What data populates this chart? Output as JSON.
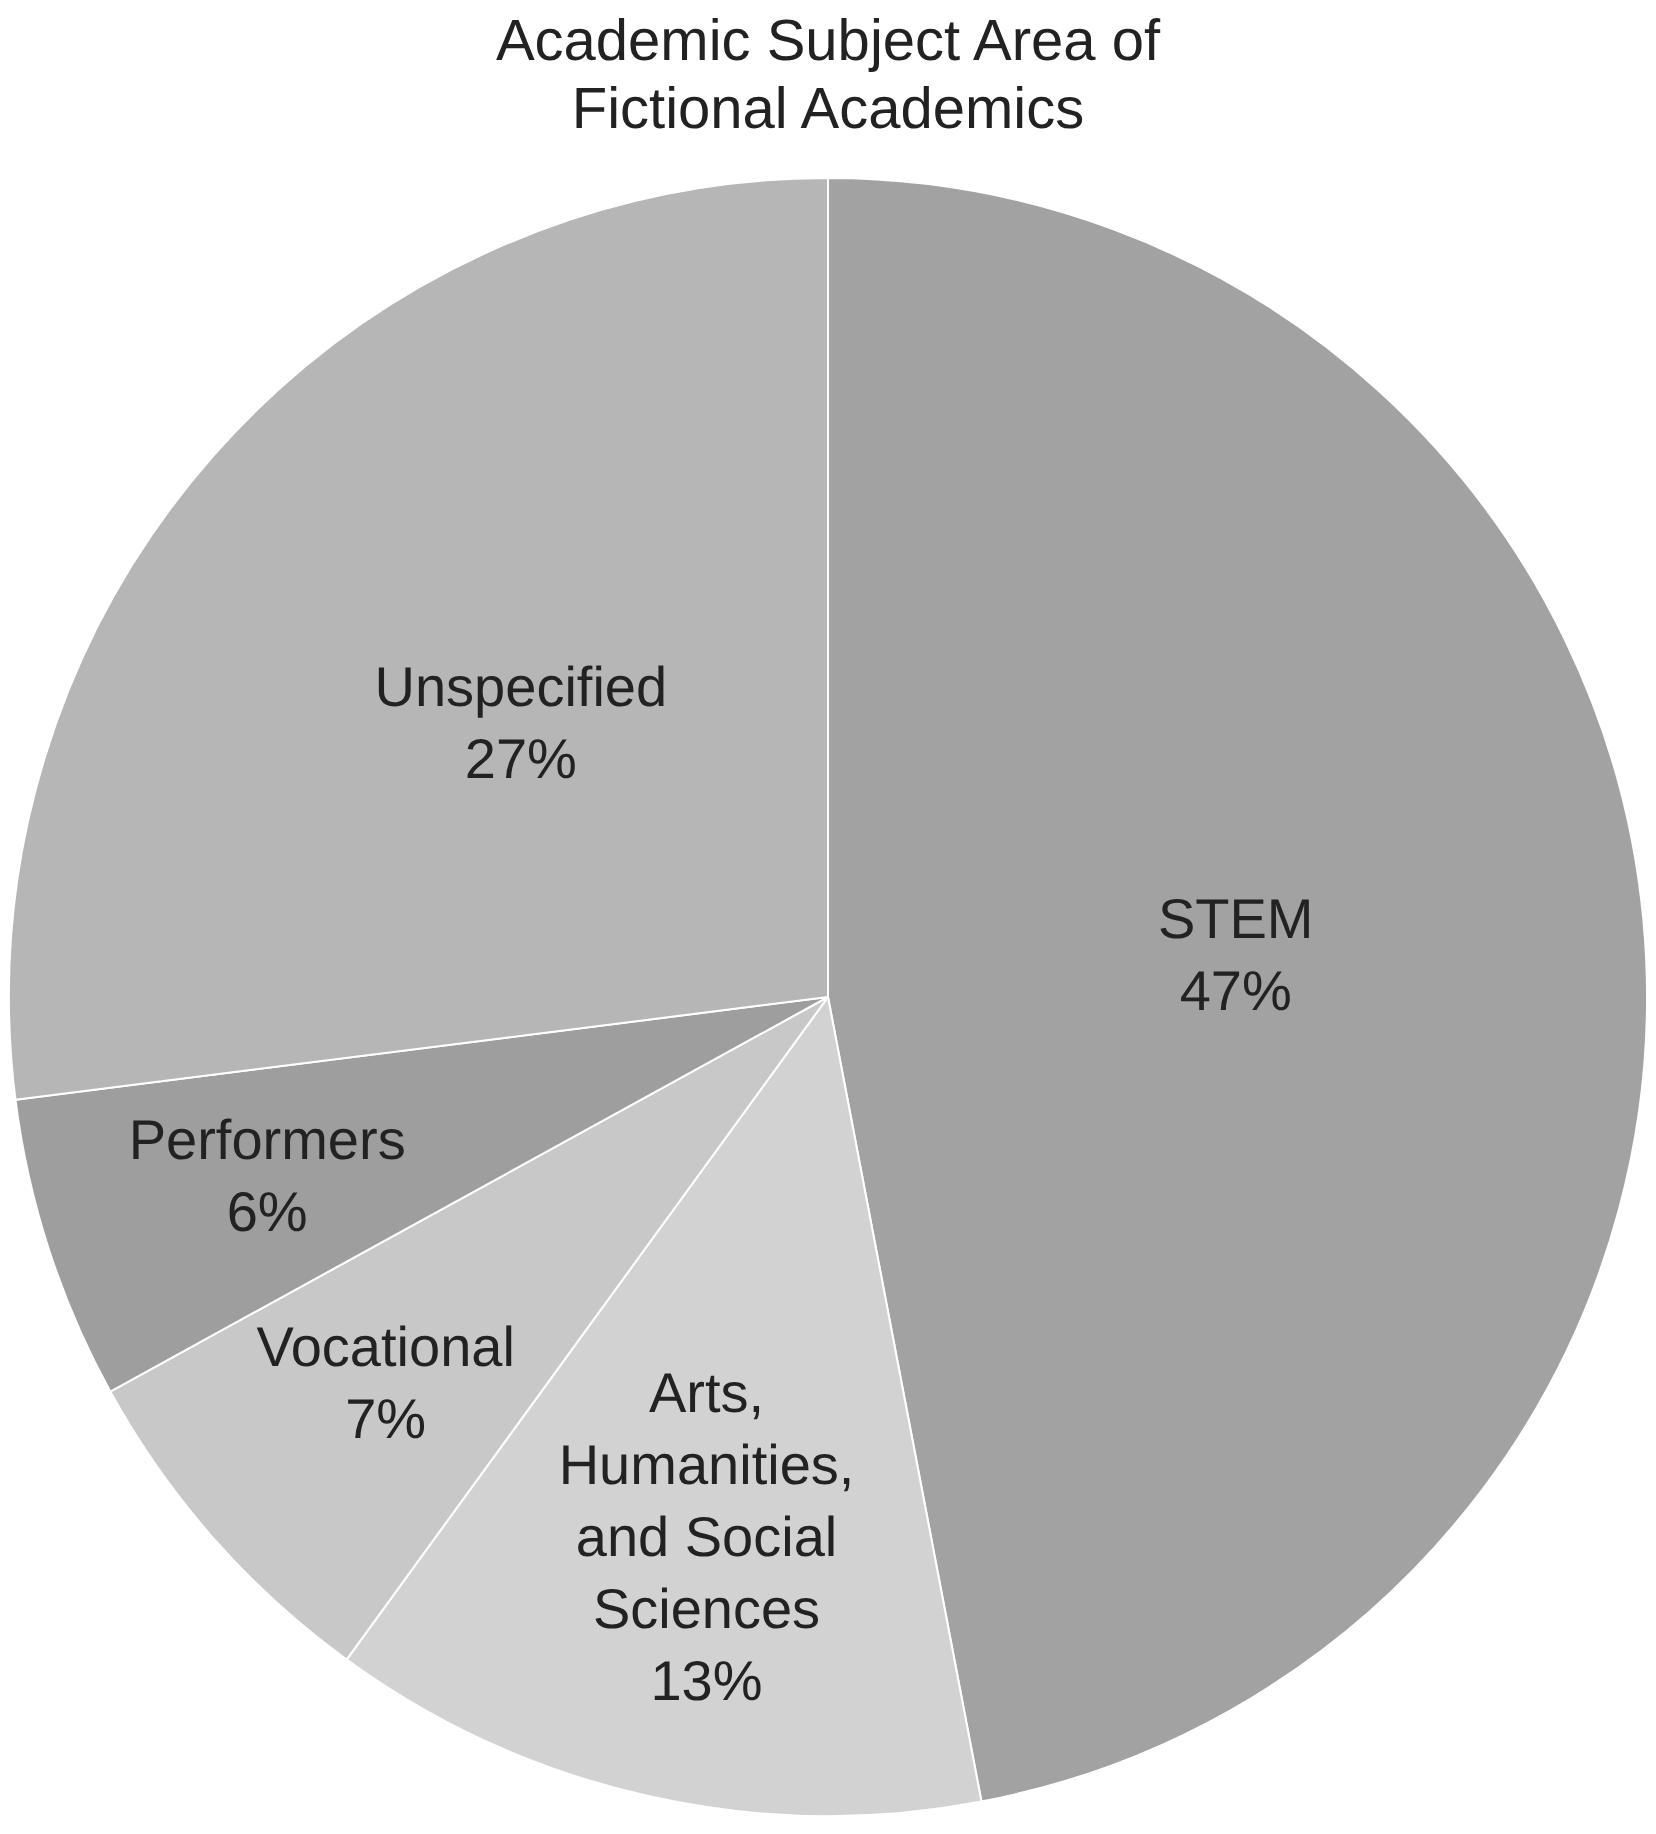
{
  "chart_data": {
    "type": "pie",
    "title": "Academic Subject Area of Fictional Academics",
    "categories": [
      "STEM",
      "Arts, Humanities, and Social Sciences",
      "Vocational",
      "Performers",
      "Unspecified"
    ],
    "values": [
      47,
      13,
      7,
      6,
      27
    ],
    "colors": [
      "#a2a2a2",
      "#d2d2d2",
      "#c8c8c8",
      "#9e9e9e",
      "#b6b6b6"
    ],
    "value_labels": [
      "47%",
      "13%",
      "7%",
      "6%",
      "27%"
    ]
  }
}
